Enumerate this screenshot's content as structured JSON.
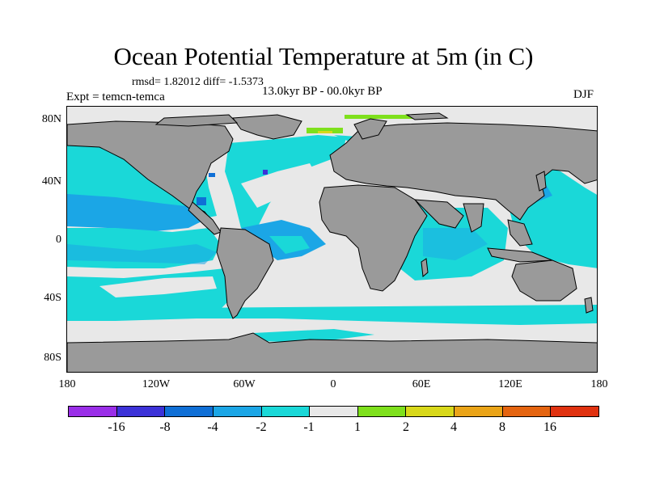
{
  "title": "Ocean Potential Temperature at 5m (in C)",
  "stats": "rmsd= 1.82012 diff= -1.5373",
  "experiment": "Expt = temcn-temca",
  "period": "13.0kyr BP - 00.0kyr BP",
  "season": "DJF",
  "lat_labels": [
    "80N",
    "40N",
    "0",
    "40S",
    "80S"
  ],
  "lon_labels": [
    "180",
    "120W",
    "60W",
    "0",
    "60E",
    "120E",
    "180"
  ],
  "colorbar": {
    "colors": [
      "#9a2ee8",
      "#3c32d8",
      "#0f6fd6",
      "#1ba6e6",
      "#1ad8d8",
      "#e8e8e8",
      "#7ee01c",
      "#d8d81a",
      "#eaa418",
      "#e46410",
      "#e03210"
    ],
    "labels": [
      "-16",
      "-8",
      "-4",
      "-2",
      "-1",
      "1",
      "2",
      "4",
      "8",
      "16"
    ]
  },
  "map_colors": {
    "land": "#9a9a9a",
    "near_zero": "#e8e8e8",
    "minus_1_to_2": "#1ad8d8",
    "minus_2_to_4": "#1ba6e6",
    "minus_4_to_8": "#0f6fd6",
    "minus_8_to_16": "#3c32d8",
    "plus_1_to_2": "#7ee01c",
    "plus_2_to_4": "#d8d81a"
  }
}
